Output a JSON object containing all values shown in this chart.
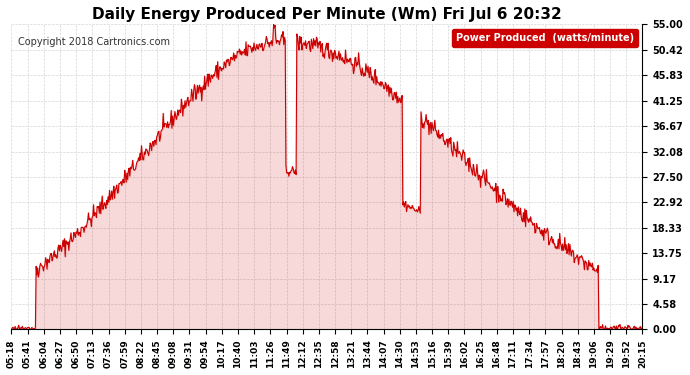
{
  "title": "Daily Energy Produced Per Minute (Wm) Fri Jul 6 20:32",
  "copyright": "Copyright 2018 Cartronics.com",
  "legend_label": "Power Produced  (watts/minute)",
  "ylabel_right": "",
  "ymin": 0.0,
  "ymax": 55.0,
  "yticks": [
    0.0,
    4.58,
    9.17,
    13.75,
    18.33,
    22.92,
    27.5,
    32.08,
    36.67,
    41.25,
    45.83,
    50.42,
    55.0
  ],
  "background_color": "#ffffff",
  "plot_bg_color": "#ffffff",
  "grid_color": "#cccccc",
  "line_color": "#cc0000",
  "title_color": "#000000",
  "x_tick_labels": [
    "05:18",
    "05:41",
    "06:04",
    "06:27",
    "06:50",
    "07:13",
    "07:36",
    "07:59",
    "08:22",
    "08:45",
    "09:08",
    "09:31",
    "09:54",
    "10:17",
    "10:40",
    "11:03",
    "11:26",
    "11:49",
    "12:12",
    "12:35",
    "12:58",
    "13:21",
    "13:44",
    "14:07",
    "14:30",
    "14:53",
    "15:16",
    "15:39",
    "16:02",
    "16:25",
    "16:48",
    "17:11",
    "17:34",
    "17:57",
    "18:20",
    "18:43",
    "19:06",
    "19:29",
    "19:52",
    "20:15"
  ],
  "num_points": 870
}
